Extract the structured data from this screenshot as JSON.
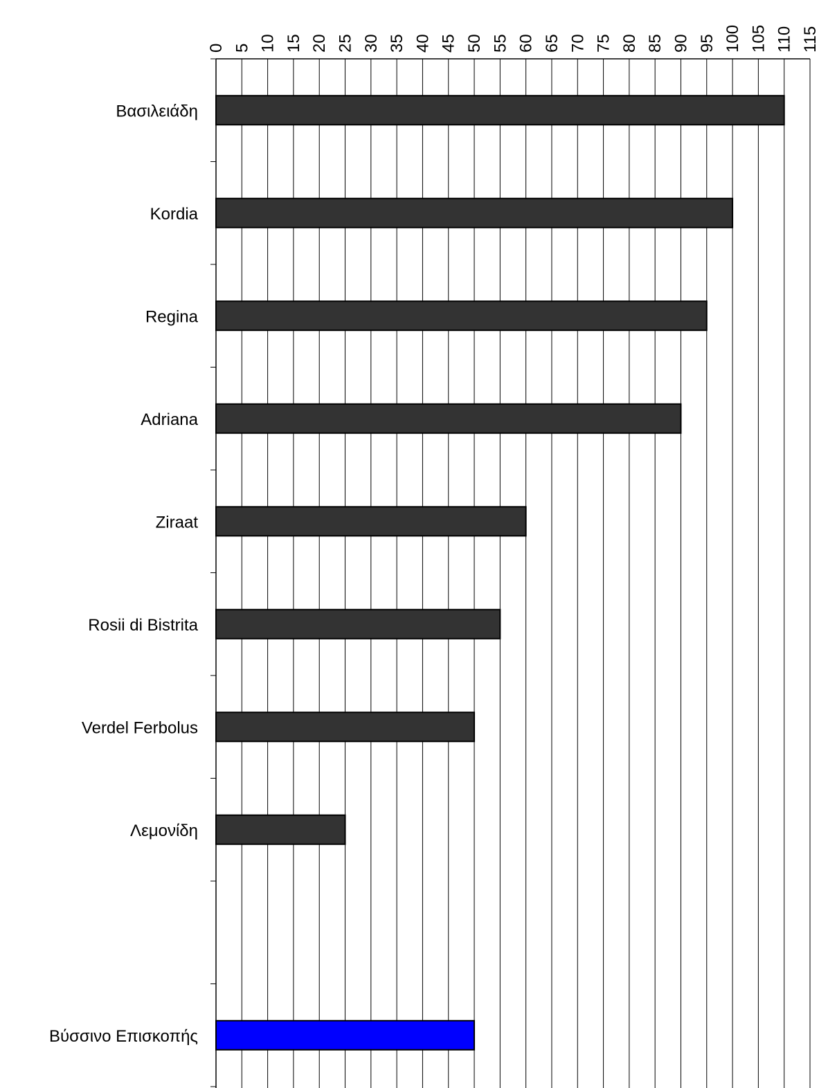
{
  "chart_data": {
    "type": "bar",
    "orientation": "horizontal",
    "categories": [
      "Βασιλειάδη",
      "Kordia",
      "Regina",
      "Adriana",
      "Ziraat",
      "Rosii di Bistrita",
      "Verdel Ferbolus",
      "Λεμονίδη",
      "",
      "Βύσσινο Επισκοπής"
    ],
    "values": [
      110,
      100,
      95,
      90,
      60,
      55,
      50,
      25,
      null,
      50
    ],
    "bar_colors": [
      "#333333",
      "#333333",
      "#333333",
      "#333333",
      "#333333",
      "#333333",
      "#333333",
      "#333333",
      null,
      "#0000ff"
    ],
    "title": "",
    "xlabel": "",
    "ylabel": "",
    "xlim": [
      0,
      115
    ],
    "x_ticks": [
      "0",
      "5",
      "10",
      "15",
      "20",
      "25",
      "30",
      "35",
      "40",
      "45",
      "50",
      "55",
      "60",
      "65",
      "70",
      "75",
      "80",
      "85",
      "90",
      "95",
      "100",
      "105",
      "110",
      "115"
    ],
    "x_axis_position": "top",
    "grid": "vertical",
    "legend": "none"
  }
}
